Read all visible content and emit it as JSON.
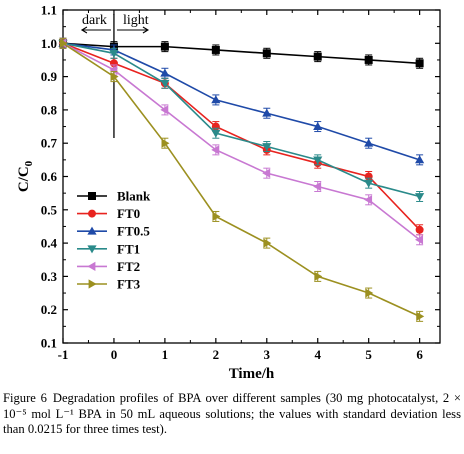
{
  "chart_data": {
    "type": "line",
    "title": "",
    "xlabel": "Time/h",
    "ylabel_main": "C/C",
    "ylabel_sub": "0",
    "xlim": [
      -1,
      6.4
    ],
    "ylim": [
      0.1,
      1.1
    ],
    "xticks": [
      -1,
      0,
      1,
      2,
      3,
      4,
      5,
      6
    ],
    "yticks": [
      0.1,
      0.2,
      0.3,
      0.4,
      0.5,
      0.6,
      0.7,
      0.8,
      0.9,
      1.0,
      1.1
    ],
    "ytick_labels": [
      "0.1",
      "0.2",
      "0.3",
      "0.4",
      "0.5",
      "0.6",
      "0.7",
      "0.8",
      "0.9",
      "1.0",
      "1.1"
    ],
    "grid": false,
    "legend_position": "bottom-left",
    "annotations": {
      "dark": "dark",
      "light": "light"
    },
    "x": [
      -1,
      0,
      1,
      2,
      3,
      4,
      5,
      6
    ],
    "series": [
      {
        "name": "Blank",
        "color": "#000000",
        "marker": "square",
        "values": [
          1.0,
          0.99,
          0.99,
          0.98,
          0.97,
          0.96,
          0.95,
          0.94
        ],
        "error": 0.015
      },
      {
        "name": "FT0",
        "color": "#e8231f",
        "marker": "circle",
        "values": [
          1.0,
          0.94,
          0.88,
          0.75,
          0.68,
          0.64,
          0.6,
          0.44
        ],
        "error": 0.015
      },
      {
        "name": "FT0.5",
        "color": "#1f4aa8",
        "marker": "triangle-up",
        "values": [
          1.0,
          0.98,
          0.91,
          0.83,
          0.79,
          0.75,
          0.7,
          0.65
        ],
        "error": 0.015
      },
      {
        "name": "FT1",
        "color": "#2a8a8a",
        "marker": "triangle-down",
        "values": [
          1.0,
          0.97,
          0.88,
          0.73,
          0.69,
          0.65,
          0.58,
          0.54
        ],
        "error": 0.015
      },
      {
        "name": "FT2",
        "color": "#c878d2",
        "marker": "triangle-left",
        "values": [
          1.0,
          0.92,
          0.8,
          0.68,
          0.61,
          0.57,
          0.53,
          0.41
        ],
        "error": 0.015
      },
      {
        "name": "FT3",
        "color": "#9c9020",
        "marker": "triangle-right",
        "values": [
          1.0,
          0.9,
          0.7,
          0.48,
          0.4,
          0.3,
          0.25,
          0.18
        ],
        "error": 0.015
      }
    ]
  },
  "caption": {
    "label": "Figure 6",
    "text": "Degradation profiles of BPA over different samples (30 mg photocatalyst, 2 × 10⁻⁵ mol L⁻¹ BPA in 50 mL aqueous solutions; the values with standard deviation less than 0.0215 for three times test)."
  }
}
